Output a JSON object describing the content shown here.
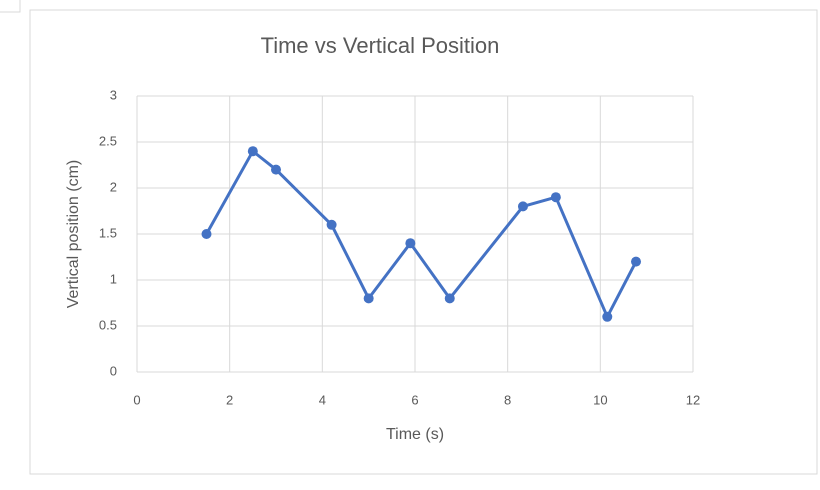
{
  "chart_data": {
    "type": "line",
    "title": "Time vs Vertical Position",
    "x_label": "Time (s)",
    "y_label": "Vertical position (cm)",
    "series": [
      {
        "name": "Vertical position",
        "color": "#4472c4",
        "x": [
          1.5,
          2.5,
          3,
          4.2,
          5,
          5.9,
          6.75,
          8.33,
          9.04,
          10.15,
          10.77
        ],
        "values": [
          1.5,
          2.4,
          2.2,
          1.6,
          0.8,
          1.4,
          0.8,
          1.8,
          1.9,
          0.6,
          1.2
        ]
      }
    ],
    "xlim": [
      0,
      12
    ],
    "xticks": [
      0,
      2,
      4,
      6,
      8,
      10,
      12
    ],
    "ylim": [
      0,
      3
    ],
    "yticks": [
      0,
      0.5,
      1,
      1.5,
      2,
      2.5,
      3
    ],
    "grid": true
  }
}
